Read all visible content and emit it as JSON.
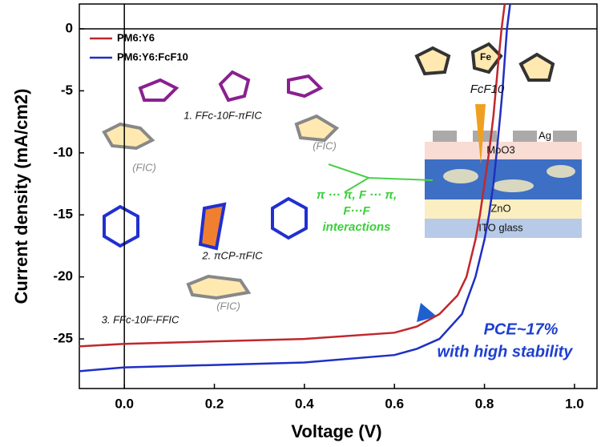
{
  "chart_data": {
    "type": "line",
    "xlabel": "Voltage (V)",
    "ylabel": "Current density (mA/cm2)",
    "xlim": [
      -0.1,
      1.05
    ],
    "xticks": [
      {
        "value": 0,
        "label": "0.0"
      },
      0.2,
      0.4,
      0.6,
      0.8,
      {
        "value": 1,
        "label": "1.0"
      }
    ],
    "ylim": [
      -29,
      2
    ],
    "yticks": [
      -25,
      -20,
      -15,
      -10,
      -5,
      0
    ],
    "legend": "upper left",
    "series": [
      {
        "name": "PM6:Y6",
        "color": "#c0282d",
        "x": [
          -0.1,
          0,
          0.2,
          0.4,
          0.6,
          0.65,
          0.7,
          0.74,
          0.76,
          0.78,
          0.79,
          0.8,
          0.81,
          0.82,
          0.825,
          0.83,
          0.838,
          0.845
        ],
        "values": [
          -25.6,
          -25.4,
          -25.2,
          -25,
          -24.5,
          -24,
          -23,
          -21.5,
          -20,
          -17,
          -15,
          -12.5,
          -10,
          -7,
          -5,
          -3,
          0,
          2
        ]
      },
      {
        "name": "PM6:Y6:FcF10",
        "color": "#1f2fc4",
        "x": [
          -0.1,
          0,
          0.2,
          0.4,
          0.6,
          0.65,
          0.7,
          0.75,
          0.78,
          0.8,
          0.81,
          0.82,
          0.827,
          0.835,
          0.84,
          0.845,
          0.85,
          0.857
        ],
        "values": [
          -27.6,
          -27.3,
          -27.1,
          -26.9,
          -26.3,
          -25.8,
          -25,
          -23,
          -20,
          -17,
          -15,
          -12.5,
          -10,
          -7,
          -5,
          -2.5,
          0,
          2
        ]
      }
    ],
    "annotations": [
      "PCE~17%",
      "with high stability",
      "π ··· π, F ··· π,",
      "F···F",
      "interactions",
      "FcF10",
      "1. FFc-10F-πFIC",
      "2. πCP-πFIC",
      "3. FFc-10F-FFIC",
      "(FIC)",
      "(FIC)",
      "(FIC)",
      "Ag",
      "MoO3",
      "ZnO",
      "ITO glass",
      "Fe"
    ]
  }
}
